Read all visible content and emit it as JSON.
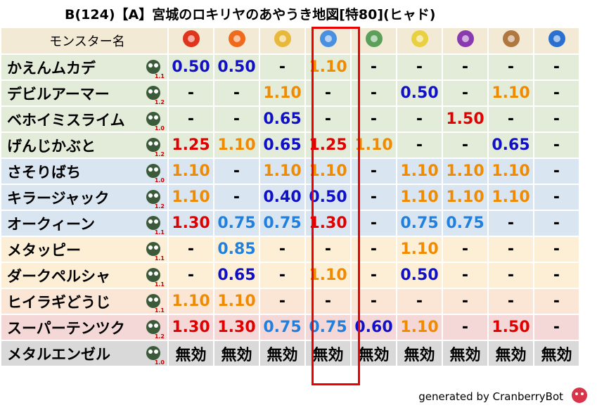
{
  "title": "B(124)【A】宮城のロキリヤのあやうき地図[特80](ヒャド)",
  "table": {
    "header": "モンスター名",
    "rows": [
      {
        "name": "かえんムカデ",
        "rank": "1.1",
        "cells": [
          "0.50",
          "0.50",
          "-",
          "1.10",
          "-",
          "-",
          "-",
          "-",
          "-"
        ]
      },
      {
        "name": "デビルアーマー",
        "rank": "1.2",
        "cells": [
          "-",
          "-",
          "1.10",
          "-",
          "-",
          "0.50",
          "-",
          "1.10",
          "-"
        ]
      },
      {
        "name": "ベホイミスライム",
        "rank": "1.0",
        "cells": [
          "-",
          "-",
          "0.65",
          "-",
          "-",
          "-",
          "1.50",
          "-",
          "-"
        ]
      },
      {
        "name": "げんじかぶと",
        "rank": "1.2",
        "cells": [
          "1.25",
          "1.10",
          "0.65",
          "1.25",
          "1.10",
          "-",
          "-",
          "0.65",
          "-"
        ]
      },
      {
        "name": "さそりばち",
        "rank": "1.0",
        "cells": [
          "1.10",
          "-",
          "1.10",
          "1.10",
          "-",
          "1.10",
          "1.10",
          "1.10",
          "-"
        ]
      },
      {
        "name": "キラージャック",
        "rank": "1.2",
        "cells": [
          "1.10",
          "-",
          "0.40",
          "0.50",
          "-",
          "1.10",
          "1.10",
          "1.10",
          "-"
        ]
      },
      {
        "name": "オークィーン",
        "rank": "1.1",
        "cells": [
          "1.30",
          "0.75",
          "0.75",
          "1.30",
          "-",
          "0.75",
          "0.75",
          "-",
          "-"
        ]
      },
      {
        "name": "メタッピー",
        "rank": "1.1",
        "cells": [
          "-",
          "0.85",
          "-",
          "-",
          "-",
          "1.10",
          "-",
          "-",
          "-"
        ]
      },
      {
        "name": "ダークペルシャ",
        "rank": "1.1",
        "cells": [
          "-",
          "0.65",
          "-",
          "1.10",
          "-",
          "0.50",
          "-",
          "-",
          "-"
        ]
      },
      {
        "name": "ヒイラギどうじ",
        "rank": "1.1",
        "cells": [
          "1.10",
          "1.10",
          "-",
          "-",
          "-",
          "-",
          "-",
          "-",
          "-"
        ]
      },
      {
        "name": "スーパーテンツク",
        "rank": "1.2",
        "cells": [
          "1.30",
          "1.30",
          "0.75",
          "0.75",
          "0.60",
          "1.10",
          "-",
          "1.50",
          "-"
        ]
      },
      {
        "name": "メタルエンゼル",
        "rank": "1.0",
        "cells": [
          "無効",
          "無効",
          "無効",
          "無効",
          "無効",
          "無効",
          "無効",
          "無効",
          "無効"
        ]
      }
    ]
  },
  "footer": "generated by CranberryBot"
}
